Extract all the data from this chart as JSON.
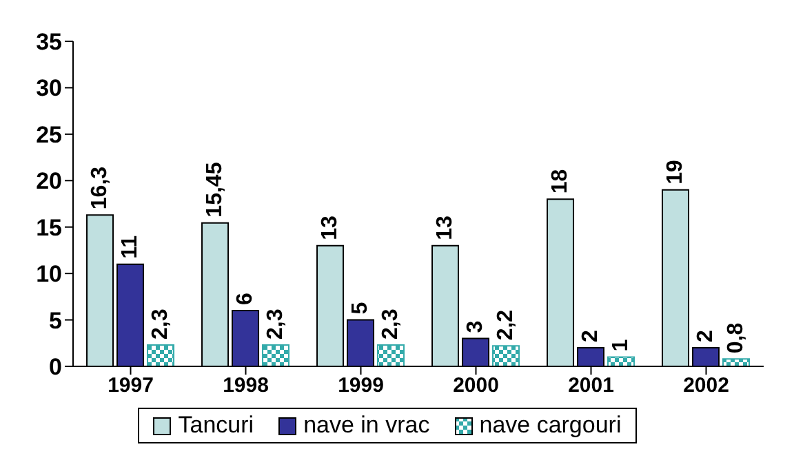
{
  "chart_data": {
    "type": "bar",
    "categories": [
      "1997",
      "1998",
      "1999",
      "2000",
      "2001",
      "2002"
    ],
    "series": [
      {
        "name": "Tancuri",
        "color": "#c0e0e0",
        "values": [
          16.3,
          15.45,
          13,
          13,
          18,
          19
        ],
        "value_labels": [
          "16,3",
          "15,45",
          "13",
          "13",
          "18",
          "19"
        ]
      },
      {
        "name": "nave in vrac",
        "color": "#333399",
        "values": [
          11,
          6,
          5,
          3,
          2,
          2
        ],
        "value_labels": [
          "11",
          "6",
          "5",
          "3",
          "2",
          "2"
        ]
      },
      {
        "name": "nave cargouri",
        "color": "#33aaaa",
        "values": [
          2.3,
          2.3,
          2.3,
          2.2,
          1,
          0.8
        ],
        "value_labels": [
          "2,3",
          "2,3",
          "2,3",
          "2,2",
          "1",
          "0,8"
        ]
      }
    ],
    "ylim": [
      0,
      35
    ],
    "yticks": [
      0,
      5,
      10,
      15,
      20,
      25,
      30,
      35
    ],
    "grid": false,
    "legend": "bottom"
  }
}
